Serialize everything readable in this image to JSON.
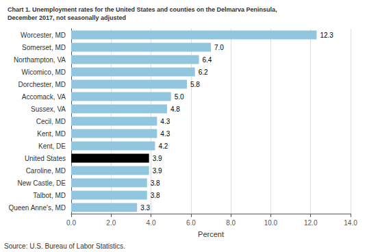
{
  "chart_data": {
    "type": "bar",
    "orientation": "horizontal",
    "title": "Chart 1. Unemployment rates for the United States and counties on the Delmarva Peninsula,",
    "subtitle": "December 2017, not seasonally adjusted",
    "categories": [
      "Queen Anne's, MD",
      "Talbot, MD",
      "New Castle, DE",
      "Caroline, MD",
      "United States",
      "Kent, DE",
      "Kent, MD",
      "Cecil, MD",
      "Sussex, VA",
      "Accomack, VA",
      "Dorchester, MD",
      "Wicomico, MD",
      "Northampton, VA",
      "Somerset, MD",
      "Worcester, MD"
    ],
    "values": [
      3.3,
      3.8,
      3.8,
      3.9,
      3.9,
      4.2,
      4.3,
      4.3,
      4.8,
      5.0,
      5.8,
      6.2,
      6.4,
      7.0,
      12.3
    ],
    "value_labels": [
      "3.3",
      "3.8",
      "3.8",
      "3.9",
      "3.9",
      "4.2",
      "4.3",
      "4.3",
      "4.8",
      "5.0",
      "5.8",
      "6.2",
      "6.4",
      "7.0",
      "12.3"
    ],
    "colors": [
      "#92C5DE",
      "#92C5DE",
      "#92C5DE",
      "#92C5DE",
      "#000000",
      "#92C5DE",
      "#92C5DE",
      "#92C5DE",
      "#92C5DE",
      "#92C5DE",
      "#92C5DE",
      "#92C5DE",
      "#92C5DE",
      "#92C5DE",
      "#92C5DE"
    ],
    "data_labels": true,
    "xlabel": "Percent",
    "xlim": [
      0,
      14.0
    ],
    "xticks": [
      {
        "value": 0,
        "label": "0.0"
      },
      {
        "value": 2,
        "label": "2.0"
      },
      {
        "value": 4,
        "label": "4.0"
      },
      {
        "value": 6,
        "label": "6.0"
      },
      {
        "value": 8,
        "label": "8.0"
      },
      {
        "value": 10,
        "label": "10.0"
      },
      {
        "value": 12,
        "label": "12.0"
      },
      {
        "value": 14,
        "label": "14.0"
      }
    ],
    "grid": true,
    "annotations": [
      "Source: U.S. Bureau of Labor Statistics."
    ]
  }
}
